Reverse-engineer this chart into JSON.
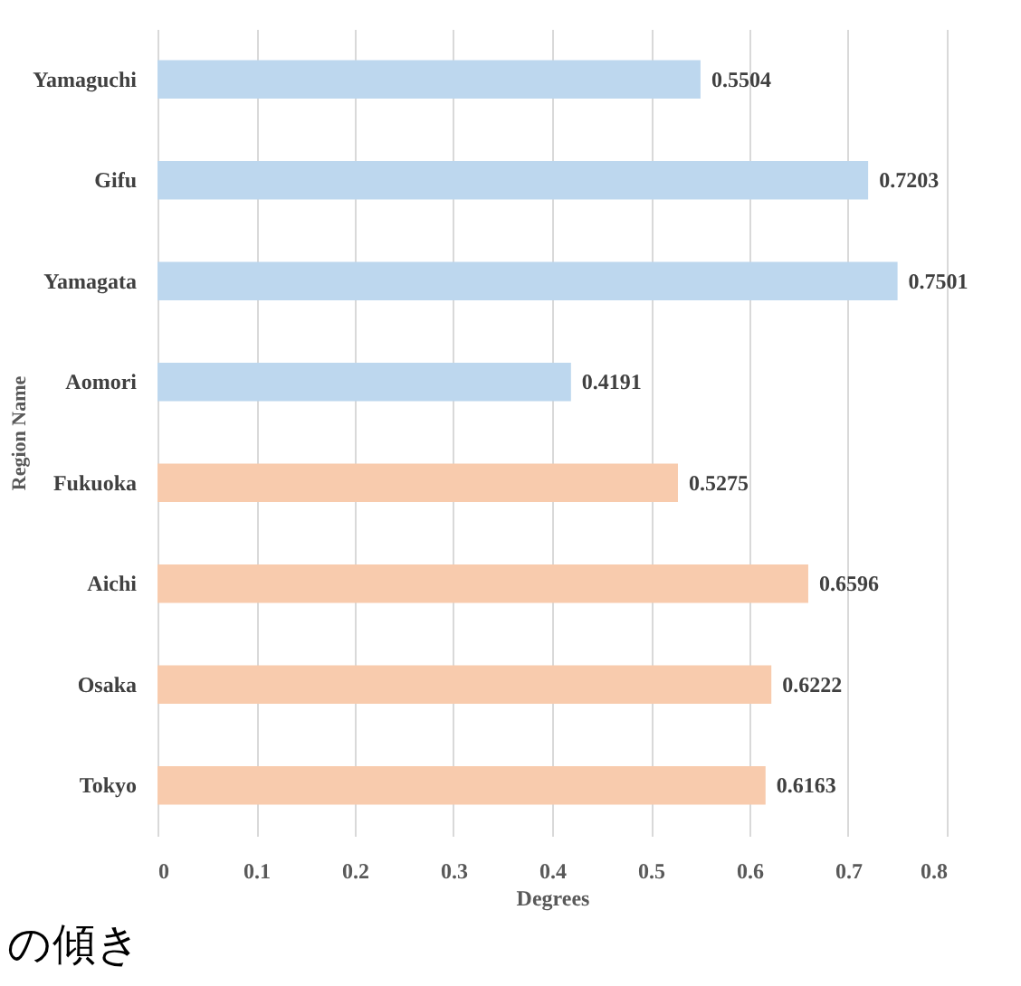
{
  "chart_data": {
    "type": "bar",
    "orientation": "horizontal",
    "xlabel": "Degrees",
    "ylabel": "Region Name",
    "categories": [
      "Yamaguchi",
      "Gifu",
      "Yamagata",
      "Aomori",
      "Fukuoka",
      "Aichi",
      "Osaka",
      "Tokyo"
    ],
    "values": [
      0.5504,
      0.7203,
      0.7501,
      0.4191,
      0.5275,
      0.6596,
      0.6222,
      0.6163
    ],
    "colors": [
      "#bdd7ee",
      "#bdd7ee",
      "#bdd7ee",
      "#bdd7ee",
      "#f8cbad",
      "#f8cbad",
      "#f8cbad",
      "#f8cbad"
    ],
    "xlim": [
      0,
      0.8
    ],
    "xticks": [
      0,
      0.1,
      0.2,
      0.3,
      0.4,
      0.5,
      0.6,
      0.7,
      0.8
    ],
    "grid": "x",
    "data_labels": true,
    "annotations": [
      "の傾き"
    ]
  }
}
